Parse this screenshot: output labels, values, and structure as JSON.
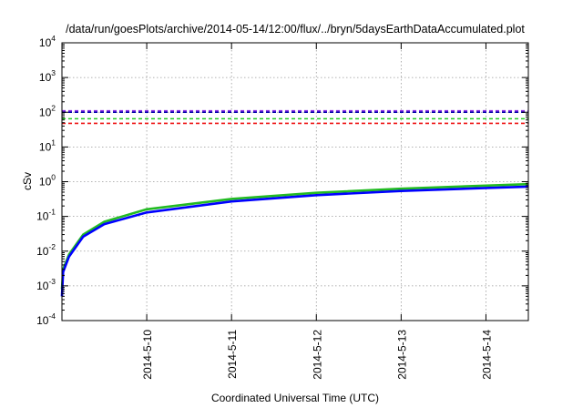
{
  "chart_data": {
    "type": "line",
    "title": "/data/run/goesPlots/archive/2014-05-14/12:00/flux/../bryn/5daysEarthDataAccumulated.plot",
    "xlabel": "Coordinated Universal Time (UTC)",
    "ylabel": "cSv",
    "yscale": "log",
    "ylim": [
      0.0001,
      10000
    ],
    "xlim": [
      "2014-05-09 00:00",
      "2014-05-14 12:00"
    ],
    "x_ticks": [
      "2014-5-10",
      "2014-5-11",
      "2014-5-12",
      "2014-5-13",
      "2014-5-14"
    ],
    "y_ticks": [
      {
        "base": "10",
        "exp": "-4"
      },
      {
        "base": "10",
        "exp": "-3"
      },
      {
        "base": "10",
        "exp": "-2"
      },
      {
        "base": "10",
        "exp": "-1"
      },
      {
        "base": "10",
        "exp": "0"
      },
      {
        "base": "10",
        "exp": "1"
      },
      {
        "base": "10",
        "exp": "2"
      },
      {
        "base": "10",
        "exp": "3"
      },
      {
        "base": "10",
        "exp": "4"
      }
    ],
    "grid": true,
    "legend": "none",
    "series": [
      {
        "color": "#22bb22",
        "style": "solid",
        "x": [
          "2014-05-09 00:00",
          "2014-05-09 00:20",
          "2014-05-09 02:00",
          "2014-05-09 06:00",
          "2014-05-09 12:00",
          "2014-05-10 00:00",
          "2014-05-11 00:00",
          "2014-05-12 00:00",
          "2014-05-13 00:00",
          "2014-05-14 00:00",
          "2014-05-14 12:00"
        ],
        "y": [
          0.0008,
          0.003,
          0.008,
          0.03,
          0.07,
          0.16,
          0.32,
          0.48,
          0.63,
          0.77,
          0.85
        ]
      },
      {
        "color": "#0000ff",
        "style": "solid",
        "x": [
          "2014-05-09 00:00",
          "2014-05-09 00:20",
          "2014-05-09 02:00",
          "2014-05-09 06:00",
          "2014-05-09 12:00",
          "2014-05-10 00:00",
          "2014-05-11 00:00",
          "2014-05-12 00:00",
          "2014-05-13 00:00",
          "2014-05-14 00:00",
          "2014-05-14 12:00"
        ],
        "y": [
          0.0005,
          0.0025,
          0.007,
          0.026,
          0.06,
          0.13,
          0.27,
          0.41,
          0.54,
          0.66,
          0.72
        ]
      },
      {
        "color": "#8a2be2",
        "style": "dashed",
        "y": 110
      },
      {
        "color": "#0000aa",
        "style": "dashed",
        "y": 100
      },
      {
        "color": "#22cc22",
        "style": "dashed",
        "y": 65
      },
      {
        "color": "#ee1111",
        "style": "dashed",
        "y": 48
      }
    ]
  }
}
